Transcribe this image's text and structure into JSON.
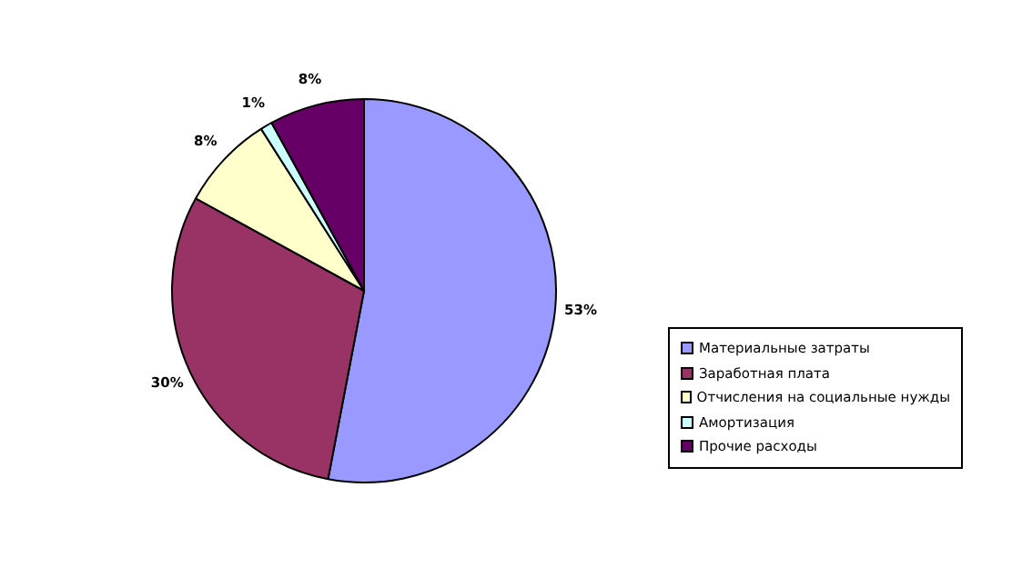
{
  "chart_data": {
    "type": "pie",
    "categories": [
      "Материальные затраты",
      "Заработная плата",
      "Отчисления на социальные нужды",
      "Амортизация",
      "Прочие расходы"
    ],
    "values": [
      53,
      30,
      8,
      1,
      8
    ],
    "colors": [
      "#9999ff",
      "#993366",
      "#ffffcc",
      "#ccffff",
      "#660066"
    ],
    "value_labels": [
      "53%",
      "30%",
      "8%",
      "1%",
      "8%"
    ],
    "legend": "right"
  }
}
